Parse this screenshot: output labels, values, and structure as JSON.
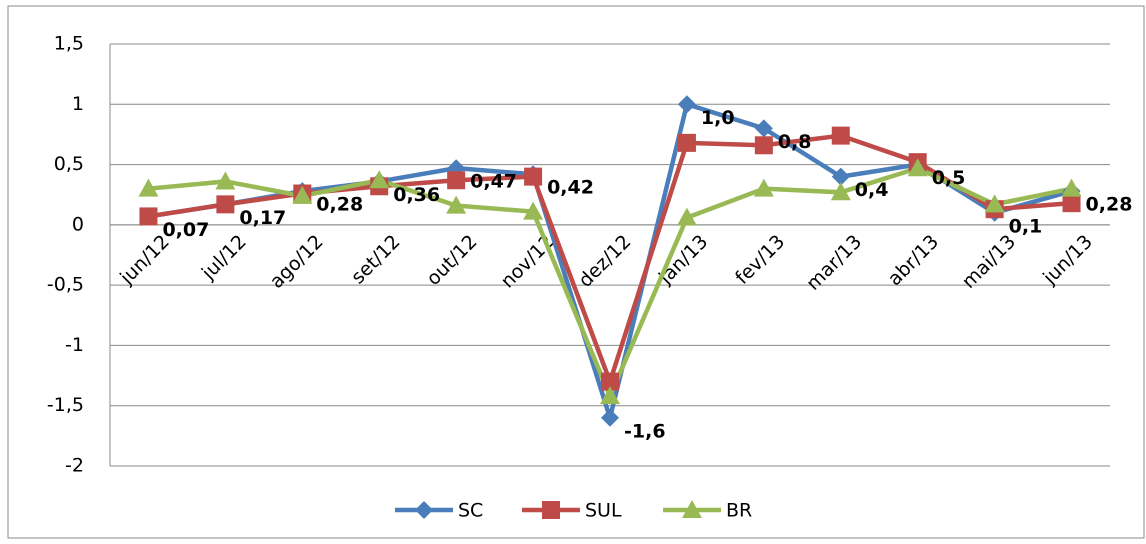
{
  "chart_data": {
    "type": "line",
    "categories": [
      "jun/12",
      "jul/12",
      "ago/12",
      "set/12",
      "out/12",
      "nov/12",
      "dez/12",
      "jan/13",
      "fev/13",
      "mar/13",
      "abr/13",
      "mai/13",
      "jun/13"
    ],
    "series": [
      {
        "name": "SC",
        "color": "#4a7ebb",
        "marker": "diamond",
        "values": [
          0.07,
          0.17,
          0.28,
          0.36,
          0.47,
          0.42,
          -1.6,
          1.0,
          0.8,
          0.4,
          0.5,
          0.1,
          0.28
        ],
        "value_labels": [
          "0,07",
          "0,17",
          "0,28",
          "0,36",
          "0,47",
          "0,42",
          "-1,6",
          "1,0",
          "0,8",
          "0,4",
          "0,5",
          "0,1",
          "0,28"
        ]
      },
      {
        "name": "SUL",
        "color": "#be4b48",
        "marker": "square",
        "values": [
          0.07,
          0.17,
          0.26,
          0.32,
          0.37,
          0.4,
          -1.3,
          0.68,
          0.66,
          0.74,
          0.52,
          0.13,
          0.18
        ]
      },
      {
        "name": "BR",
        "color": "#98b954",
        "marker": "triangle",
        "values": [
          0.3,
          0.36,
          0.24,
          0.37,
          0.16,
          0.11,
          -1.42,
          0.06,
          0.3,
          0.27,
          0.47,
          0.17,
          0.3
        ]
      }
    ],
    "ylim": [
      -2,
      1.5
    ],
    "yticks": [
      -2,
      {
        "value": -1.5,
        "label": "-1,5"
      },
      -1,
      {
        "value": -0.5,
        "label": "-0,5"
      },
      0,
      {
        "value": 0.5,
        "label": "0,5"
      },
      1,
      {
        "value": 1.5,
        "label": "1,5"
      }
    ],
    "grid": true,
    "legend": "bottom"
  }
}
